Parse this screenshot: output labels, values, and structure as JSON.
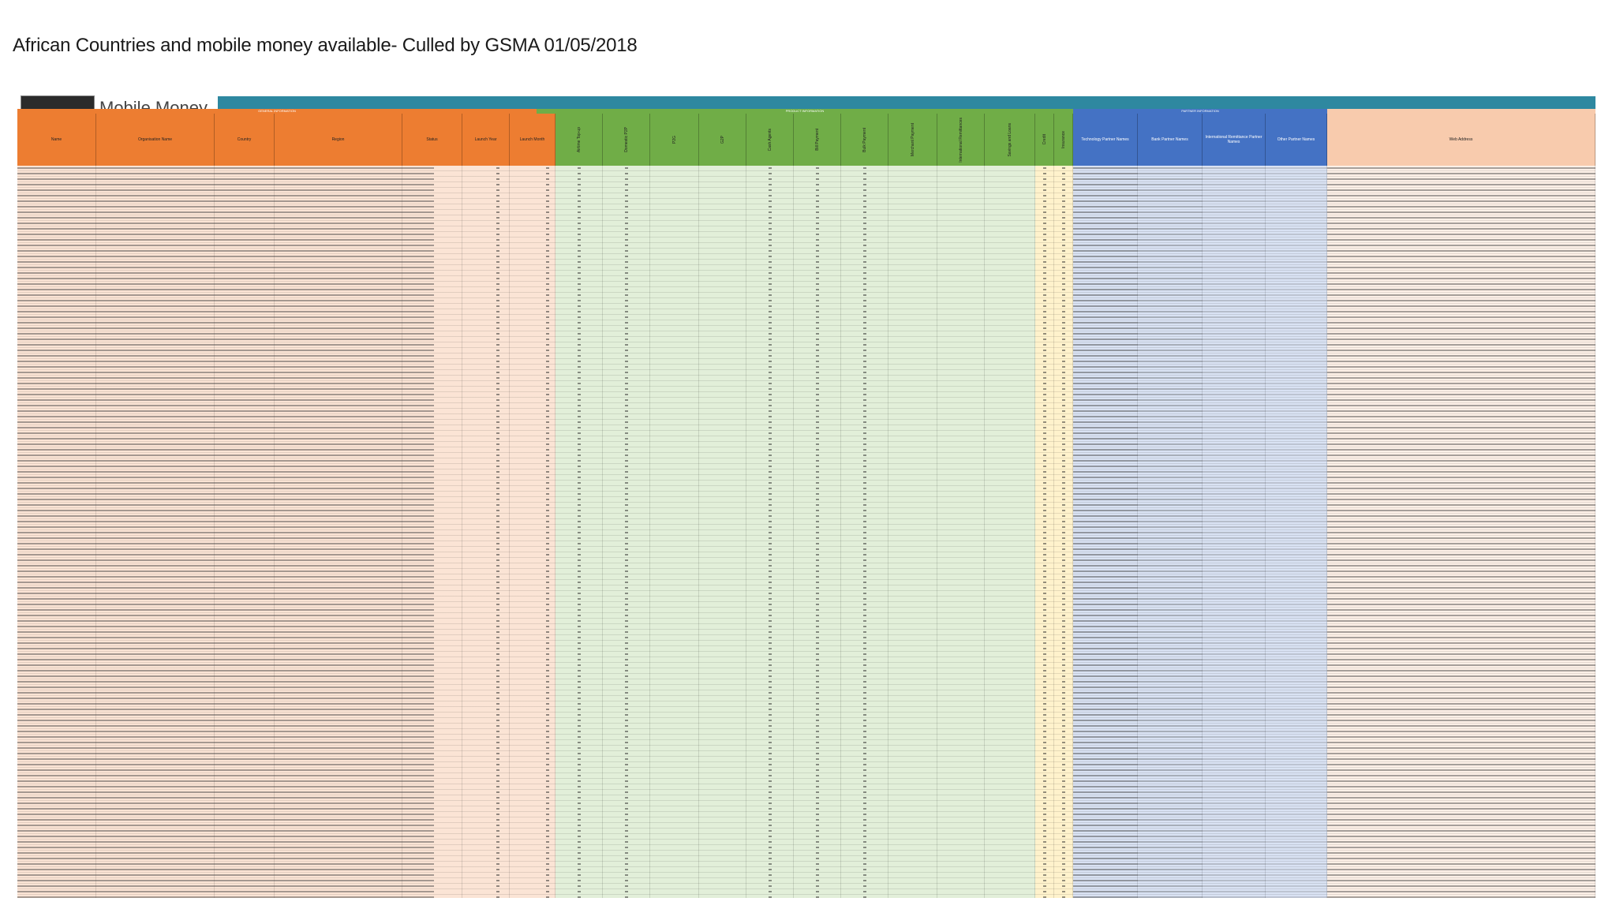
{
  "document": {
    "title": "African Countries and mobile money available- Culled by GSMA 01/05/2018",
    "logo_text": "Mobile Money"
  },
  "colors": {
    "topband": "#2e88a0",
    "orange_header": "#ed7d31",
    "orange_rows": "#fbe4d5",
    "green_header": "#70ad47",
    "green_rows": "#e2efd9",
    "yellow_header": "#ffc000",
    "yellow_rows": "#fff2cc",
    "blue_header": "#4472c4",
    "blue_rows": "#d9e2f3",
    "peach_header": "#f8cbad",
    "peach_rows": "#fdf0e7"
  },
  "groups": [
    "GENERAL INFORMATION",
    "PRODUCT INFORMATION",
    "PARTNER INFORMATION"
  ],
  "columns": [
    {
      "label": "Name"
    },
    {
      "label": "Organisation Name"
    },
    {
      "label": "Country"
    },
    {
      "label": "Region"
    },
    {
      "label": "Status"
    },
    {
      "label": "Launch Year"
    },
    {
      "label": "Launch Month"
    },
    {
      "label": "Airtime Top-up"
    },
    {
      "label": "Domestic P2P"
    },
    {
      "label": "P2G"
    },
    {
      "label": "G2P"
    },
    {
      "label": "Cash Agents"
    },
    {
      "label": "Bill Payment"
    },
    {
      "label": "Bulk Payment"
    },
    {
      "label": "Merchant Payment"
    },
    {
      "label": "International Remittances"
    },
    {
      "label": "Savings and Loans"
    },
    {
      "label": "Credit"
    },
    {
      "label": "Insurance"
    },
    {
      "label": "Technology Partner Names"
    },
    {
      "label": "Bank Partner Names"
    },
    {
      "label": "International Remittance Partner Names"
    },
    {
      "label": "Other Partner Names"
    },
    {
      "label": "Web Address"
    }
  ]
}
